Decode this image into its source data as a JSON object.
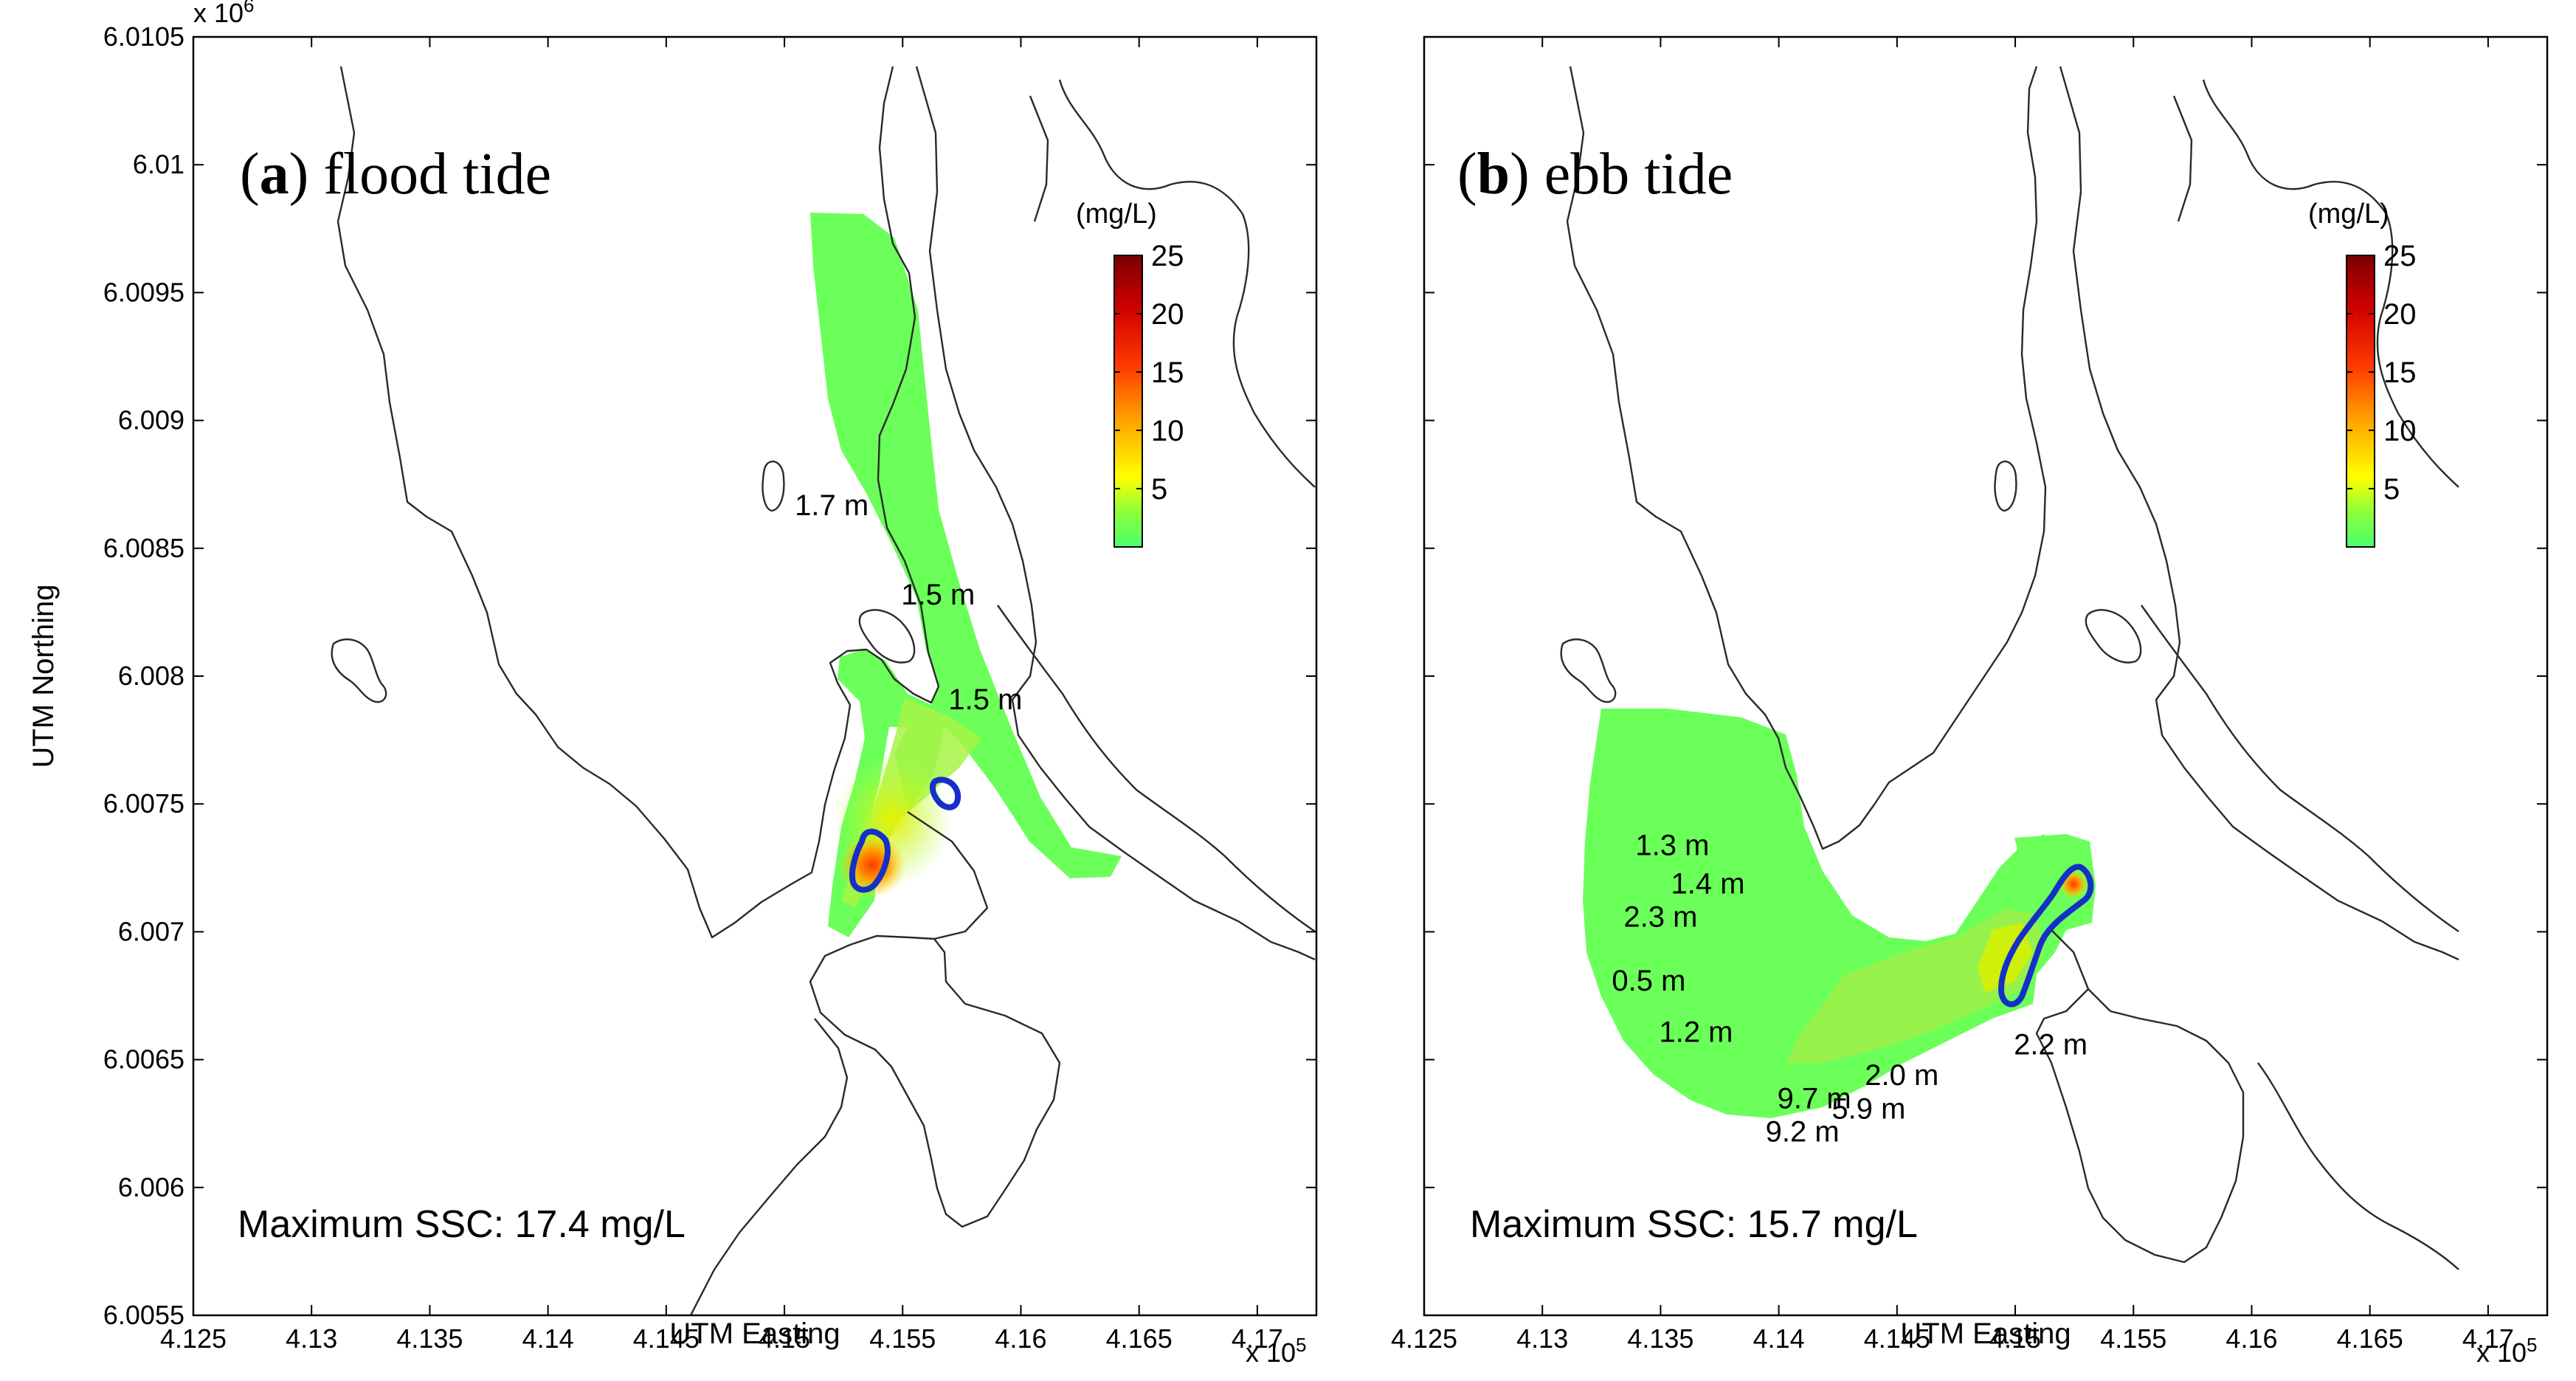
{
  "chart_data": [
    {
      "type": "heatmap",
      "panel_letter": "a",
      "title": "flood tide",
      "xlabel": "UTM Easting",
      "ylabel": "UTM Northing",
      "x_ticks": [
        "4.125",
        "4.13",
        "4.135",
        "4.14",
        "4.145",
        "4.15",
        "4.155",
        "4.16",
        "4.165",
        "4.17"
      ],
      "y_ticks": [
        "6.0105",
        "6.01",
        "6.0095",
        "6.009",
        "6.0085",
        "6.008",
        "6.0075",
        "6.007",
        "6.0065",
        "6.006",
        "6.0055"
      ],
      "x_multiplier": "x 10",
      "x_multiplier_exp": "5",
      "y_multiplier": "x 10",
      "y_multiplier_exp": "6",
      "xlim": [
        412500,
        417250
      ],
      "ylim": [
        6005500,
        6010500
      ],
      "colorbar": {
        "unit": "(mg/L)",
        "min": 0,
        "max": 25,
        "ticks": [
          "25",
          "20",
          "15",
          "10",
          "5"
        ]
      },
      "max_label": "Maximum SSC: 17.4 mg/L",
      "max_ssc_mg_per_L": 17.4,
      "depth_labels": [
        {
          "text": "1.7 m",
          "easting": 415200,
          "northing": 6008630
        },
        {
          "text": "1.5 m",
          "easting": 415650,
          "northing": 6008280
        },
        {
          "text": "1.5 m",
          "easting": 415850,
          "northing": 6007870
        }
      ]
    },
    {
      "type": "heatmap",
      "panel_letter": "b",
      "title": "ebb tide",
      "xlabel": "UTM Easting",
      "ylabel": "",
      "x_ticks": [
        "4.125",
        "4.13",
        "4.135",
        "4.14",
        "4.145",
        "4.15",
        "4.155",
        "4.16",
        "4.165",
        "4.17"
      ],
      "x_multiplier": "x 10",
      "x_multiplier_exp": "5",
      "xlim": [
        412500,
        417250
      ],
      "ylim": [
        6005500,
        6010500
      ],
      "colorbar": {
        "unit": "(mg/L)",
        "min": 0,
        "max": 25,
        "ticks": [
          "25",
          "20",
          "15",
          "10",
          "5"
        ]
      },
      "max_label": "Maximum SSC: 15.7 mg/L",
      "max_ssc_mg_per_L": 15.7,
      "depth_labels": [
        {
          "text": "1.3 m",
          "easting": 413550,
          "northing": 6007300
        },
        {
          "text": "1.4 m",
          "easting": 413700,
          "northing": 6007150
        },
        {
          "text": "2.3 m",
          "easting": 413500,
          "northing": 6007020
        },
        {
          "text": "0.5 m",
          "easting": 413450,
          "northing": 6006770
        },
        {
          "text": "1.2 m",
          "easting": 413650,
          "northing": 6006570
        },
        {
          "text": "9.7 m",
          "easting": 414150,
          "northing": 6006310
        },
        {
          "text": "5.9 m",
          "easting": 414380,
          "northing": 6006270
        },
        {
          "text": "2.0 m",
          "easting": 414520,
          "northing": 6006400
        },
        {
          "text": "9.2 m",
          "easting": 414100,
          "northing": 6006180
        },
        {
          "text": "2.2 m",
          "easting": 415150,
          "northing": 6006520
        }
      ]
    }
  ]
}
